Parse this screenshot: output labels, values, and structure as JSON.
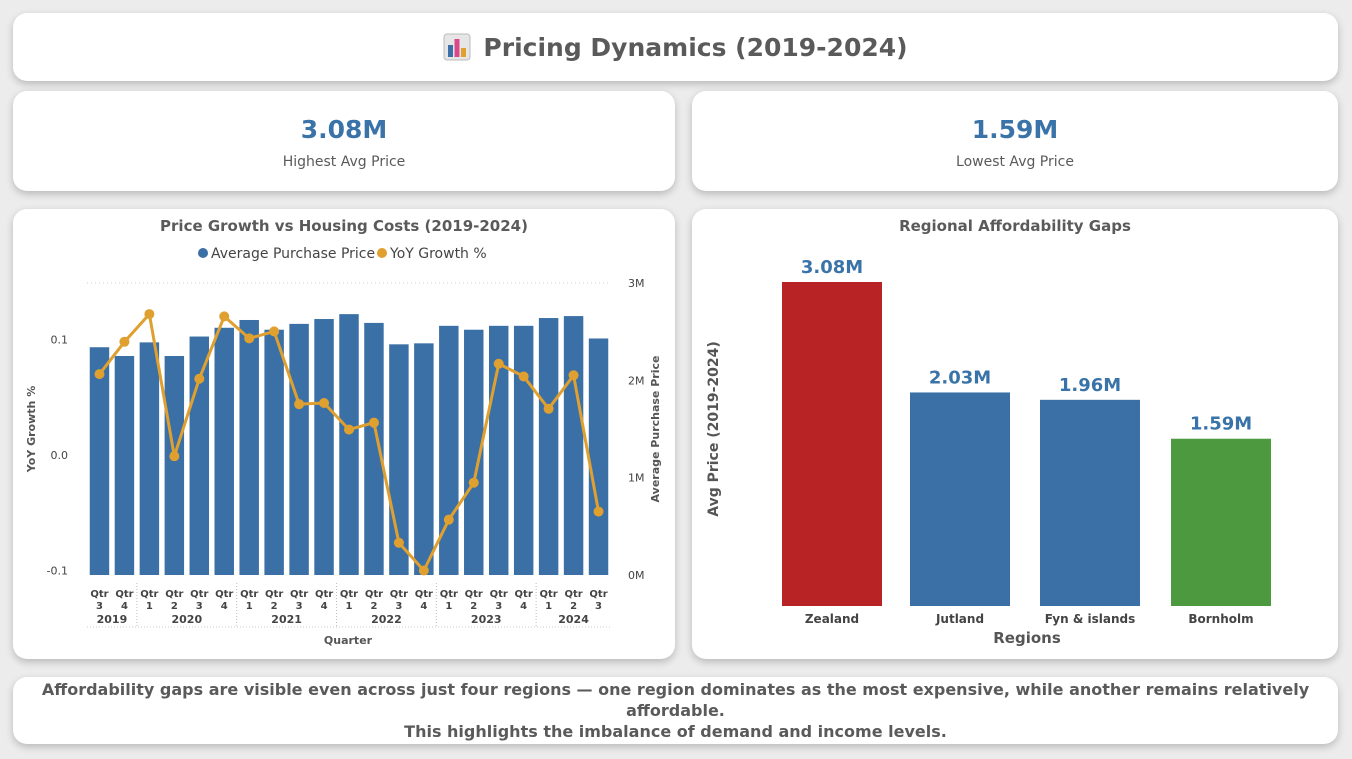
{
  "header": {
    "title": "Pricing Dynamics (2019-2024)",
    "icon": "bar-chart-icon"
  },
  "kpis": [
    {
      "value": "3.08M",
      "label": "Highest Avg Price"
    },
    {
      "value": "1.59M",
      "label": "Lowest Avg Price"
    }
  ],
  "chart_data": [
    {
      "type": "bar+line",
      "title": "Price Growth vs Housing Costs (2019-2024)",
      "legend": {
        "placement": "top-center",
        "entries": [
          "Average Purchase Price",
          "YoY Growth %"
        ]
      },
      "xlabel": "Quarter",
      "ylabel_left": "YoY Growth %",
      "ylabel_right": "Average Purchase Price",
      "left_ticks": [
        "0.1",
        "0.0",
        "-0.1"
      ],
      "right_ticks": [
        "3M",
        "2M",
        "1M",
        "0M"
      ],
      "ylim_left": [
        -0.1,
        0.1
      ],
      "ylim_right": [
        0,
        3000000
      ],
      "quarter_labels": [
        "Qtr 3",
        "Qtr 4",
        "Qtr 1",
        "Qtr 2",
        "Qtr 3",
        "Qtr 4",
        "Qtr 1",
        "Qtr 2",
        "Qtr 3",
        "Qtr 4",
        "Qtr 1",
        "Qtr 2",
        "Qtr 3",
        "Qtr 4",
        "Qtr 1",
        "Qtr 2",
        "Qtr 3",
        "Qtr 4",
        "Qtr 1",
        "Qtr 2",
        "Qtr 3"
      ],
      "years": [
        {
          "label": "2019",
          "count": 2
        },
        {
          "label": "2020",
          "count": 4
        },
        {
          "label": "2021",
          "count": 4
        },
        {
          "label": "2022",
          "count": 4
        },
        {
          "label": "2023",
          "count": 4
        },
        {
          "label": "2024",
          "count": 3
        }
      ],
      "series": [
        {
          "name": "Average Purchase Price",
          "type": "bar",
          "color": "#3a70a5",
          "values": [
            2340000,
            2250000,
            2390000,
            2250000,
            2450000,
            2540000,
            2620000,
            2520000,
            2580000,
            2630000,
            2680000,
            2590000,
            2370000,
            2380000,
            2560000,
            2520000,
            2560000,
            2560000,
            2640000,
            2660000,
            2430000
          ]
        },
        {
          "name": "YoY Growth %",
          "type": "line",
          "color": "#e0a030",
          "values": [
            0.07,
            0.098,
            0.122,
            -0.001,
            0.066,
            0.12,
            0.101,
            0.107,
            0.044,
            0.045,
            0.022,
            0.028,
            -0.076,
            -0.1,
            -0.056,
            -0.024,
            0.079,
            0.068,
            0.04,
            0.069,
            -0.049
          ]
        }
      ]
    },
    {
      "type": "bar",
      "title": "Regional Affordability Gaps",
      "xlabel": "Regions",
      "ylabel": "Avg Price (2019-2024)",
      "categories": [
        "Zealand",
        "Jutland",
        "Fyn & islands",
        "Bornholm"
      ],
      "values": [
        3.08,
        2.03,
        1.96,
        1.59
      ],
      "value_labels": [
        "3.08M",
        "2.03M",
        "1.96M",
        "1.59M"
      ],
      "colors": [
        "#b82426",
        "#3a70a5",
        "#3a70a5",
        "#4c993f"
      ],
      "ylim": [
        0,
        3.08
      ]
    }
  ],
  "footer": {
    "line1": "Affordability gaps are visible even across just four regions — one region dominates as the most expensive, while another remains relatively affordable.",
    "line2": "This highlights the imbalance of demand and income levels."
  }
}
